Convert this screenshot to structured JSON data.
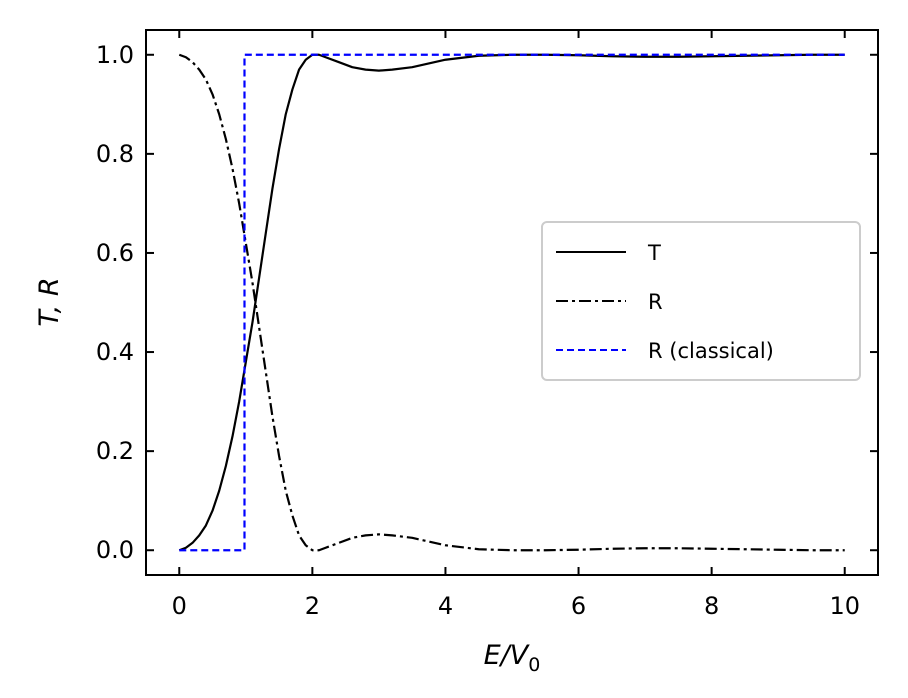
{
  "chart_data": {
    "type": "line",
    "title": "",
    "xlabel": "E/V",
    "xlabel_subscript": "0",
    "ylabel": "T, R",
    "xlim": [
      -0.5,
      10.5
    ],
    "ylim": [
      -0.05,
      1.05
    ],
    "x_ticks": [
      0,
      2,
      4,
      6,
      8,
      10
    ],
    "x_tick_labels": [
      "0",
      "2",
      "4",
      "6",
      "8",
      "10"
    ],
    "y_ticks": [
      0.0,
      0.2,
      0.4,
      0.6,
      0.8,
      1.0
    ],
    "y_tick_labels": [
      "0.0",
      "0.2",
      "0.4",
      "0.6",
      "0.8",
      "1.0"
    ],
    "grid": false,
    "legend_position": "center-right",
    "series": [
      {
        "name": "T",
        "color": "#000000",
        "style": "solid",
        "x": [
          0,
          0.1,
          0.2,
          0.3,
          0.4,
          0.5,
          0.6,
          0.7,
          0.8,
          0.9,
          1.0,
          1.1,
          1.2,
          1.3,
          1.4,
          1.5,
          1.6,
          1.7,
          1.8,
          1.9,
          2.0,
          2.1,
          2.2,
          2.4,
          2.6,
          2.8,
          3.0,
          3.2,
          3.5,
          4.0,
          4.5,
          5.0,
          5.5,
          6.0,
          6.5,
          7.0,
          7.5,
          8.0,
          8.5,
          9.0,
          9.5,
          10.0
        ],
        "y": [
          0.0,
          0.005,
          0.015,
          0.03,
          0.05,
          0.08,
          0.12,
          0.17,
          0.23,
          0.3,
          0.38,
          0.46,
          0.55,
          0.64,
          0.73,
          0.81,
          0.88,
          0.93,
          0.97,
          0.99,
          1.0,
          1.0,
          0.995,
          0.985,
          0.975,
          0.97,
          0.968,
          0.97,
          0.975,
          0.99,
          0.998,
          1.0,
          1.0,
          0.999,
          0.997,
          0.996,
          0.996,
          0.997,
          0.998,
          0.999,
          1.0,
          1.0
        ]
      },
      {
        "name": "R",
        "color": "#000000",
        "style": "dashdot",
        "x": [
          0,
          0.1,
          0.2,
          0.3,
          0.4,
          0.5,
          0.6,
          0.7,
          0.8,
          0.9,
          1.0,
          1.1,
          1.2,
          1.3,
          1.4,
          1.5,
          1.6,
          1.7,
          1.8,
          1.9,
          2.0,
          2.1,
          2.2,
          2.4,
          2.6,
          2.8,
          3.0,
          3.2,
          3.5,
          4.0,
          4.5,
          5.0,
          5.5,
          6.0,
          6.5,
          7.0,
          7.5,
          8.0,
          8.5,
          9.0,
          9.5,
          10.0
        ],
        "y": [
          1.0,
          0.995,
          0.985,
          0.97,
          0.95,
          0.92,
          0.88,
          0.83,
          0.77,
          0.7,
          0.62,
          0.54,
          0.45,
          0.36,
          0.27,
          0.19,
          0.12,
          0.07,
          0.03,
          0.01,
          0.0,
          0.0,
          0.005,
          0.015,
          0.025,
          0.03,
          0.032,
          0.03,
          0.025,
          0.01,
          0.002,
          0.0,
          0.0,
          0.001,
          0.003,
          0.004,
          0.004,
          0.003,
          0.002,
          0.001,
          0.0,
          0.0
        ]
      },
      {
        "name": "R (classical)",
        "color": "#0000ff",
        "style": "dashed",
        "x": [
          0,
          0.98,
          0.98,
          10.0
        ],
        "y": [
          0.0,
          0.0,
          1.0,
          1.0
        ]
      }
    ]
  }
}
